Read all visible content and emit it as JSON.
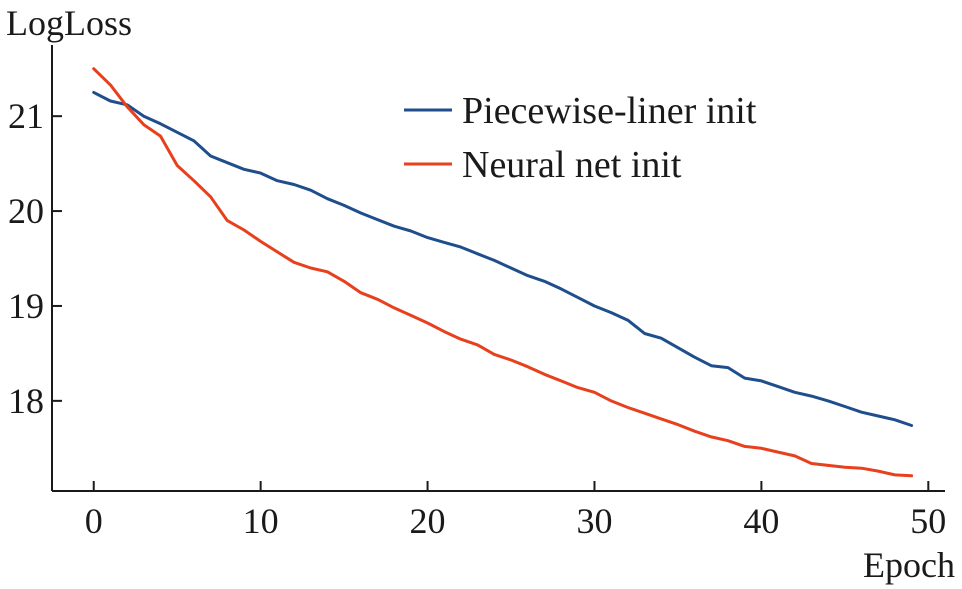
{
  "chart_data": {
    "type": "line",
    "title": "",
    "xlabel": "Epoch",
    "ylabel": "LogLoss",
    "xlim": [
      -2.5,
      51
    ],
    "ylim": [
      17.05,
      21.75
    ],
    "xticks": [
      0,
      10,
      20,
      30,
      40,
      50
    ],
    "yticks": [
      18,
      19,
      20,
      21
    ],
    "grid": false,
    "legend": "top-right",
    "x": [
      0,
      1,
      2,
      3,
      4,
      5,
      6,
      7,
      8,
      9,
      10,
      11,
      12,
      13,
      14,
      15,
      16,
      17,
      18,
      19,
      20,
      21,
      22,
      23,
      24,
      25,
      26,
      27,
      28,
      29,
      30,
      31,
      32,
      33,
      34,
      35,
      36,
      37,
      38,
      39,
      40,
      41,
      42,
      43,
      44,
      45,
      46,
      47,
      48,
      49
    ],
    "series": [
      {
        "name": "Piecewise-liner init",
        "color": "#1f4e8c",
        "values": [
          21.25,
          21.16,
          21.12,
          21.0,
          20.92,
          20.83,
          20.74,
          20.58,
          20.51,
          20.44,
          20.4,
          20.32,
          20.28,
          20.22,
          20.13,
          20.06,
          19.98,
          19.91,
          19.84,
          19.79,
          19.72,
          19.67,
          19.62,
          19.55,
          19.48,
          19.4,
          19.32,
          19.26,
          19.18,
          19.09,
          19.0,
          18.93,
          18.85,
          18.71,
          18.66,
          18.56,
          18.46,
          18.37,
          18.35,
          18.24,
          18.21,
          18.15,
          18.09,
          18.05,
          18.0,
          17.94,
          17.88,
          17.84,
          17.8,
          17.74
        ]
      },
      {
        "name": "Neural net init",
        "color": "#e8401c",
        "values": [
          21.5,
          21.33,
          21.1,
          20.91,
          20.79,
          20.48,
          20.32,
          20.15,
          19.9,
          19.8,
          19.68,
          19.57,
          19.46,
          19.4,
          19.36,
          19.26,
          19.14,
          19.07,
          18.98,
          18.9,
          18.82,
          18.73,
          18.65,
          18.59,
          18.49,
          18.43,
          18.36,
          18.28,
          18.21,
          18.14,
          18.09,
          18.0,
          17.93,
          17.87,
          17.81,
          17.75,
          17.68,
          17.62,
          17.58,
          17.52,
          17.5,
          17.46,
          17.42,
          17.34,
          17.32,
          17.3,
          17.29,
          17.26,
          17.22,
          17.21
        ]
      }
    ]
  }
}
